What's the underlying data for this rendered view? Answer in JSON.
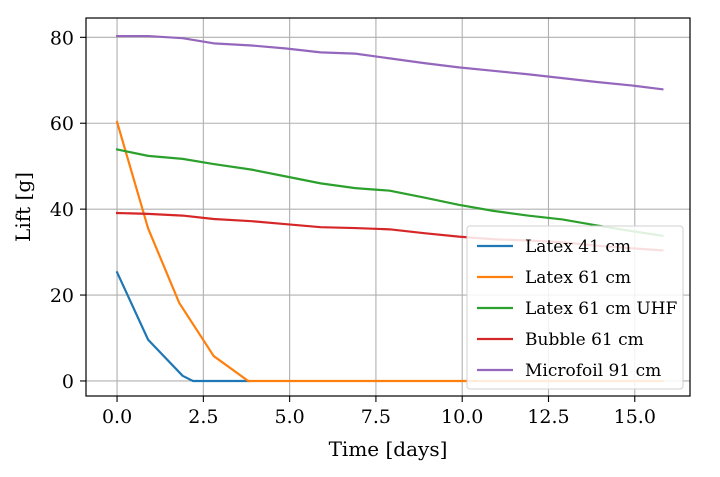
{
  "chart_data": {
    "type": "line",
    "title": "",
    "xlabel": "Time [days]",
    "ylabel": "Lift [g]",
    "xlim": [
      -0.9,
      16.6
    ],
    "ylim": [
      -3.5,
      84.5
    ],
    "x_ticks": [
      0.0,
      2.5,
      5.0,
      7.5,
      10.0,
      12.5,
      15.0
    ],
    "x_tick_labels": [
      "0.0",
      "2.5",
      "5.0",
      "7.5",
      "10.0",
      "12.5",
      "15.0"
    ],
    "y_ticks": [
      0,
      20,
      40,
      60,
      80
    ],
    "y_tick_labels": [
      "0",
      "20",
      "40",
      "60",
      "80"
    ],
    "grid": true,
    "legend_position": "lower-right",
    "series": [
      {
        "name": "Latex 41 cm",
        "color": "#1f77b4",
        "x": [
          0.0,
          0.9,
          1.9,
          2.2,
          3.8
        ],
        "y": [
          25.3,
          9.6,
          1.2,
          0.0,
          0.0
        ]
      },
      {
        "name": "Latex 61 cm",
        "color": "#ff7f0e",
        "x": [
          0.0,
          0.9,
          1.8,
          2.8,
          3.8,
          15.8
        ],
        "y": [
          60.3,
          35.5,
          18.2,
          5.8,
          0.0,
          0.0
        ]
      },
      {
        "name": "Latex 61 cm UHF",
        "color": "#2ca02c",
        "x": [
          0.0,
          0.9,
          1.9,
          2.8,
          3.9,
          4.9,
          5.9,
          6.9,
          7.9,
          8.9,
          9.9,
          10.9,
          11.9,
          12.9,
          13.9,
          14.9,
          15.8
        ],
        "y": [
          53.9,
          52.4,
          51.7,
          50.5,
          49.2,
          47.6,
          46.0,
          44.9,
          44.3,
          42.7,
          41.0,
          39.6,
          38.5,
          37.6,
          36.2,
          34.9,
          33.8
        ]
      },
      {
        "name": "Bubble 61 cm",
        "color": "#d62728",
        "x": [
          0.0,
          0.9,
          1.9,
          2.8,
          3.9,
          4.9,
          5.9,
          6.9,
          7.9,
          8.9,
          9.9,
          10.9,
          11.9,
          12.9,
          13.9,
          14.9,
          15.8
        ],
        "y": [
          39.1,
          38.9,
          38.5,
          37.7,
          37.2,
          36.5,
          35.8,
          35.6,
          35.3,
          34.4,
          33.6,
          33.0,
          32.7,
          32.3,
          31.5,
          30.9,
          30.4
        ]
      },
      {
        "name": "Microfoil 91 cm",
        "color": "#9467bd",
        "x": [
          0.0,
          0.9,
          1.9,
          2.8,
          3.9,
          4.9,
          5.9,
          6.9,
          7.9,
          8.9,
          9.9,
          10.9,
          11.9,
          12.9,
          13.9,
          14.9,
          15.8
        ],
        "y": [
          80.3,
          80.3,
          79.8,
          78.6,
          78.1,
          77.4,
          76.5,
          76.2,
          75.1,
          74.0,
          73.0,
          72.2,
          71.4,
          70.5,
          69.6,
          68.8,
          67.9
        ]
      }
    ]
  }
}
